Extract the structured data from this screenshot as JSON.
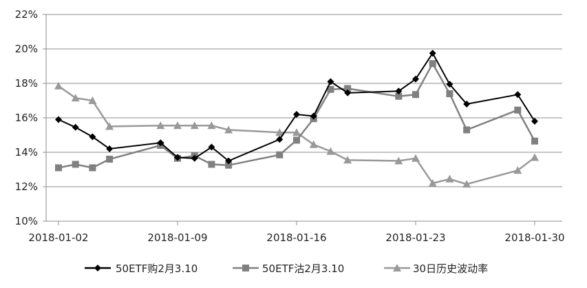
{
  "chart_data": {
    "type": "line",
    "title": "",
    "xlabel": "",
    "ylabel": "",
    "ylim": [
      0.1,
      0.22
    ],
    "y_ticks": [
      "10%",
      "12%",
      "14%",
      "16%",
      "18%",
      "20%",
      "22%"
    ],
    "x_ticks": [
      "2018-01-02",
      "2018-01-09",
      "2018-01-16",
      "2018-01-23",
      "2018-01-30"
    ],
    "grid": "horizontal",
    "legend": "bottom",
    "x": [
      "2018-01-02",
      "2018-01-03",
      "2018-01-04",
      "2018-01-05",
      "2018-01-08",
      "2018-01-09",
      "2018-01-10",
      "2018-01-11",
      "2018-01-12",
      "2018-01-15",
      "2018-01-16",
      "2018-01-17",
      "2018-01-18",
      "2018-01-19",
      "2018-01-22",
      "2018-01-23",
      "2018-01-24",
      "2018-01-25",
      "2018-01-26",
      "2018-01-29",
      "2018-01-30"
    ],
    "series": [
      {
        "name": "50ETF购2月3.10",
        "color": "#000000",
        "marker": "diamond",
        "values": [
          0.159,
          0.1545,
          0.149,
          0.142,
          0.1455,
          0.137,
          0.1365,
          0.143,
          0.135,
          0.1475,
          0.162,
          0.161,
          0.181,
          0.1745,
          0.1755,
          0.1825,
          0.1975,
          0.1795,
          0.168,
          0.1735,
          0.158
        ]
      },
      {
        "name": "50ETF沽2月3.10",
        "color": "#808080",
        "marker": "square",
        "values": [
          0.131,
          0.133,
          0.131,
          0.136,
          0.144,
          0.1365,
          0.138,
          0.133,
          0.1325,
          0.1385,
          0.147,
          0.1595,
          0.1765,
          0.177,
          0.1725,
          0.1735,
          0.1915,
          0.174,
          0.153,
          0.1645,
          0.1465
        ]
      },
      {
        "name": "30日历史波动率",
        "color": "#999999",
        "marker": "triangle",
        "values": [
          0.1785,
          0.1715,
          0.17,
          0.155,
          0.1555,
          0.1555,
          0.1555,
          0.1555,
          0.153,
          0.1515,
          0.1515,
          0.1445,
          0.1405,
          0.1355,
          0.135,
          0.1365,
          0.122,
          0.1245,
          0.1215,
          0.1295,
          0.137
        ]
      }
    ]
  }
}
